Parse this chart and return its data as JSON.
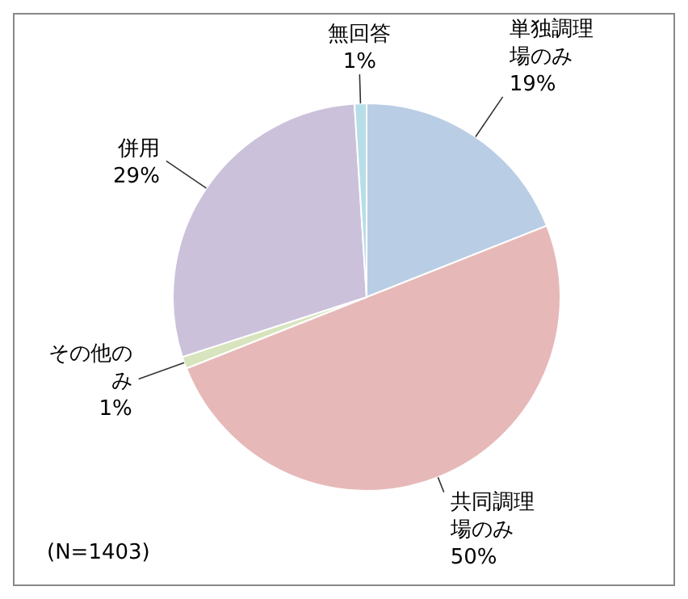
{
  "chart_data": {
    "type": "pie",
    "categories": [
      "単独調理場のみ",
      "共同調理場のみ",
      "その他のみ",
      "併用",
      "無回答"
    ],
    "values": [
      19,
      50,
      1,
      29,
      1
    ],
    "colors": [
      "#b9cde5",
      "#e6b9b8",
      "#d7e4bd",
      "#ccc1da",
      "#b7dee8"
    ],
    "value_labels": [
      "19%",
      "50%",
      "1%",
      "29%",
      "1%"
    ],
    "annotations": [
      "(N=1403)"
    ]
  }
}
